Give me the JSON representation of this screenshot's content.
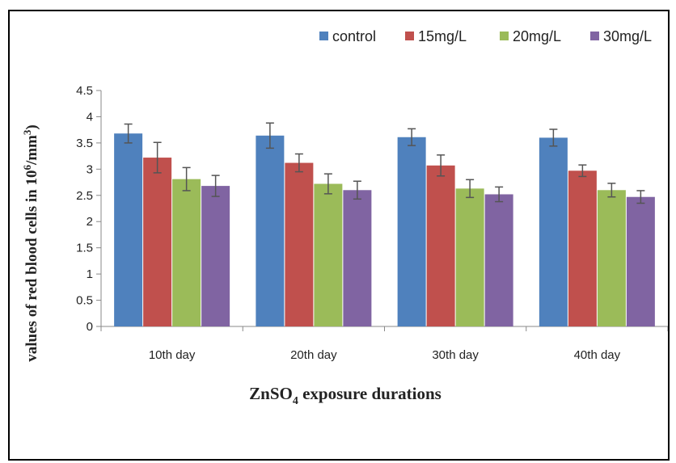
{
  "chart_data": {
    "type": "bar",
    "categories": [
      "10th day",
      "20th day",
      "30th day",
      "40th day"
    ],
    "series": [
      {
        "name": "control",
        "color": "#4f81bd",
        "values": [
          3.68,
          3.64,
          3.61,
          3.6
        ],
        "errors": [
          0.18,
          0.24,
          0.16,
          0.16
        ]
      },
      {
        "name": "15mg/L",
        "color": "#c0504d",
        "values": [
          3.22,
          3.12,
          3.07,
          2.97
        ],
        "errors": [
          0.29,
          0.17,
          0.2,
          0.11
        ]
      },
      {
        "name": "20mg/L",
        "color": "#9bbb59",
        "values": [
          2.81,
          2.72,
          2.63,
          2.6
        ],
        "errors": [
          0.22,
          0.19,
          0.17,
          0.13
        ]
      },
      {
        "name": "30mg/L",
        "color": "#8064a2",
        "values": [
          2.68,
          2.6,
          2.52,
          2.47
        ],
        "errors": [
          0.2,
          0.17,
          0.14,
          0.12
        ]
      }
    ],
    "yticks": [
      "0",
      "0.5",
      "1",
      "1.5",
      "2",
      "2.5",
      "3",
      "3.5",
      "4",
      "4.5"
    ],
    "ylim": [
      0,
      4.5
    ],
    "xlabel": {
      "main": "ZnSO",
      "sub": "4",
      "rest": " exposure  durations"
    },
    "ylabel": {
      "main": "values of red blood cells in 10",
      "sup": "6",
      "mid": "/mm",
      "sup2": "3",
      "end": ")"
    },
    "legend_position": "top-right",
    "grid": false
  }
}
